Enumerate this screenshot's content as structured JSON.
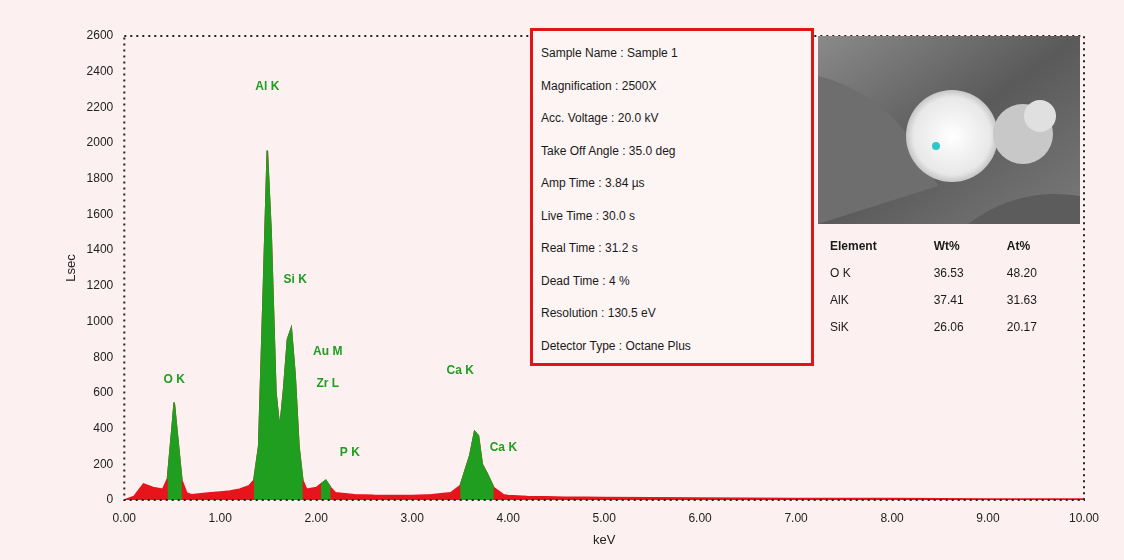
{
  "chart_data": {
    "type": "line",
    "x_label": "keV",
    "y_label": "Lsec",
    "x": [
      0.0,
      0.1,
      0.2,
      0.3,
      0.4,
      0.45,
      0.5,
      0.52,
      0.55,
      0.6,
      0.65,
      0.7,
      0.8,
      0.9,
      1.0,
      1.1,
      1.2,
      1.3,
      1.35,
      1.4,
      1.45,
      1.49,
      1.53,
      1.58,
      1.62,
      1.66,
      1.7,
      1.74,
      1.78,
      1.82,
      1.86,
      1.9,
      2.0,
      2.05,
      2.1,
      2.15,
      2.2,
      2.3,
      2.4,
      2.5,
      2.6,
      2.8,
      3.0,
      3.2,
      3.4,
      3.5,
      3.6,
      3.65,
      3.69,
      3.73,
      3.78,
      3.85,
      3.95,
      4.0,
      4.2,
      4.4,
      4.6,
      4.8,
      5.0,
      5.5,
      6.0,
      6.5,
      7.0,
      7.5,
      8.0,
      8.5,
      9.0,
      9.5,
      10.0
    ],
    "series": [
      {
        "color": "#1f9e1f",
        "values": [
          null,
          null,
          null,
          null,
          null,
          120,
          420,
          546,
          380,
          110,
          null,
          null,
          null,
          null,
          null,
          null,
          null,
          null,
          110,
          300,
          1200,
          1958,
          1500,
          600,
          400,
          620,
          900,
          963,
          700,
          300,
          110,
          null,
          null,
          90,
          110,
          70,
          null,
          null,
          null,
          null,
          null,
          null,
          null,
          null,
          null,
          80,
          250,
          385,
          360,
          200,
          150,
          70,
          null,
          null,
          null,
          null,
          null,
          null,
          null,
          null,
          null,
          null,
          null,
          null,
          null,
          null,
          null,
          null,
          null
        ]
      },
      {
        "color": "#e8141c",
        "values": [
          0,
          20,
          90,
          70,
          60,
          120,
          420,
          546,
          380,
          110,
          40,
          30,
          35,
          40,
          45,
          50,
          60,
          80,
          110,
          300,
          1200,
          1958,
          1500,
          600,
          400,
          620,
          900,
          963,
          700,
          300,
          110,
          60,
          70,
          90,
          110,
          70,
          40,
          35,
          30,
          28,
          26,
          25,
          25,
          30,
          40,
          80,
          250,
          385,
          360,
          200,
          150,
          70,
          30,
          25,
          20,
          18,
          16,
          15,
          14,
          12,
          11,
          10,
          9,
          8,
          8,
          7,
          6,
          6,
          5
        ]
      }
    ],
    "xlim": [
      0,
      10
    ],
    "xticks": [
      {
        "value": 0,
        "label": "0.00"
      },
      {
        "value": 1,
        "label": "1.00"
      },
      {
        "value": 2,
        "label": "2.00"
      },
      {
        "value": 3,
        "label": "3.00"
      },
      {
        "value": 4,
        "label": "4.00"
      },
      {
        "value": 5,
        "label": "5.00"
      },
      {
        "value": 6,
        "label": "6.00"
      },
      {
        "value": 7,
        "label": "7.00"
      },
      {
        "value": 8,
        "label": "8.00"
      },
      {
        "value": 9,
        "label": "9.00"
      },
      {
        "value": 10,
        "label": "10.00"
      }
    ],
    "ylim": [
      0,
      2600
    ],
    "yticks": [
      0,
      200,
      400,
      600,
      800,
      1000,
      1200,
      1400,
      1600,
      1800,
      2000,
      2200,
      2400,
      2600
    ],
    "grid": false,
    "annotations": [
      {
        "text": "O K",
        "x": 0.52,
        "y": 640
      },
      {
        "text": "Al K",
        "x": 1.49,
        "y": 2280
      },
      {
        "text": "Si K",
        "x": 1.78,
        "y": 1200
      },
      {
        "text": "Au M",
        "x": 2.12,
        "y": 800
      },
      {
        "text": "Zr L",
        "x": 2.12,
        "y": 620
      },
      {
        "text": "P K",
        "x": 2.35,
        "y": 230
      },
      {
        "text": "Ca K",
        "x": 3.5,
        "y": 690
      },
      {
        "text": "Ca K",
        "x": 3.95,
        "y": 260
      }
    ]
  },
  "info_box": [
    "Sample Name : Sample 1",
    "Magnification : 2500X",
    "Acc. Voltage : 20.0 kV",
    "Take Off Angle : 35.0 deg",
    "Amp Time : 3.84 µs",
    "Live Time : 30.0 s",
    "Real Time : 31.2 s",
    "Dead Time : 4 %",
    "Resolution : 130.5 eV",
    "Detector Type : Octane Plus"
  ],
  "element_table": {
    "header": [
      "Element",
      "Wt%",
      "At%"
    ],
    "rows": [
      [
        "O K",
        "36.53",
        "48.20"
      ],
      [
        "AlK",
        "37.41",
        "31.63"
      ],
      [
        "SiK",
        "26.06",
        "20.17"
      ]
    ]
  }
}
